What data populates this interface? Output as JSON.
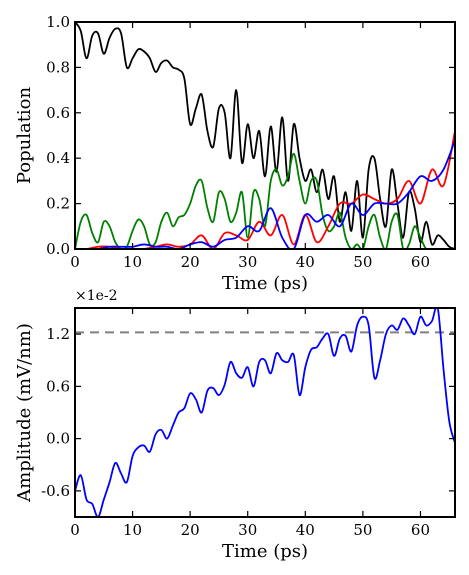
{
  "chart_data": [
    {
      "type": "line",
      "xlabel": "Time (ps)",
      "ylabel": "Population",
      "xlim": [
        0,
        66
      ],
      "ylim": [
        0.0,
        1.0
      ],
      "xticks": [
        "0",
        "10",
        "20",
        "30",
        "40",
        "50",
        "60"
      ],
      "yticks": [
        "0.0",
        "0.2",
        "0.4",
        "0.6",
        "0.8",
        "1.0"
      ],
      "grid": false,
      "series": [
        {
          "color": "#000000",
          "x": [
            0,
            1,
            2,
            3,
            4,
            5,
            6,
            7,
            8,
            9,
            10,
            11,
            12,
            13,
            14,
            15,
            16,
            17,
            18,
            19,
            20,
            21,
            22,
            23,
            24,
            25,
            26,
            27,
            28,
            29,
            30,
            31,
            32,
            33,
            34,
            35,
            36,
            37,
            38,
            39,
            40,
            41,
            42,
            43,
            44,
            45,
            46,
            47,
            48,
            49,
            50,
            51,
            52,
            53,
            54,
            55,
            56,
            57,
            58,
            59,
            60,
            61,
            62,
            63,
            64,
            65,
            66
          ],
          "y": [
            1.0,
            0.96,
            0.84,
            0.94,
            0.95,
            0.86,
            0.93,
            0.97,
            0.95,
            0.8,
            0.84,
            0.88,
            0.87,
            0.84,
            0.78,
            0.82,
            0.83,
            0.8,
            0.79,
            0.75,
            0.55,
            0.62,
            0.68,
            0.52,
            0.45,
            0.62,
            0.6,
            0.4,
            0.7,
            0.38,
            0.55,
            0.4,
            0.52,
            0.32,
            0.54,
            0.34,
            0.58,
            0.3,
            0.55,
            0.4,
            0.3,
            0.35,
            0.25,
            0.35,
            0.22,
            0.32,
            0.12,
            0.25,
            0.08,
            0.3,
            0.05,
            0.35,
            0.4,
            0.22,
            0.1,
            0.35,
            0.2,
            0.05,
            0.25,
            0.18,
            0.03,
            0.12,
            0.02,
            0.06,
            0.04,
            0.01,
            0.0
          ]
        },
        {
          "color": "#008000",
          "x": [
            0,
            1,
            2,
            3,
            4,
            5,
            6,
            7,
            8,
            9,
            10,
            11,
            12,
            13,
            14,
            15,
            16,
            17,
            18,
            19,
            20,
            21,
            22,
            23,
            24,
            25,
            26,
            27,
            28,
            29,
            30,
            31,
            32,
            33,
            34,
            35,
            36,
            37,
            38,
            39,
            40,
            41,
            42,
            43,
            44,
            45,
            46,
            47,
            48,
            49,
            50,
            51,
            52,
            53,
            54,
            55,
            56,
            57,
            58,
            59,
            60,
            61,
            62,
            63,
            64,
            65,
            66
          ],
          "y": [
            0.0,
            0.12,
            0.15,
            0.07,
            0.03,
            0.12,
            0.1,
            0.03,
            0.0,
            0.01,
            0.08,
            0.13,
            0.1,
            0.02,
            0.03,
            0.12,
            0.16,
            0.1,
            0.14,
            0.15,
            0.2,
            0.28,
            0.3,
            0.18,
            0.12,
            0.25,
            0.22,
            0.12,
            0.16,
            0.25,
            0.05,
            0.25,
            0.22,
            0.1,
            0.3,
            0.35,
            0.28,
            0.32,
            0.42,
            0.3,
            0.2,
            0.3,
            0.3,
            0.15,
            0.08,
            0.1,
            0.16,
            0.05,
            0.0,
            0.02,
            0.0,
            0.1,
            0.15,
            0.05,
            0.0,
            0.12,
            0.15,
            0.0,
            0.02,
            0.1,
            0.05,
            0.0,
            0.0,
            0.0,
            0.0,
            0.0,
            0.0
          ]
        },
        {
          "color": "#ff0000",
          "x": [
            0,
            2,
            4,
            6,
            8,
            10,
            12,
            14,
            16,
            18,
            20,
            22,
            24,
            26,
            28,
            30,
            32,
            34,
            36,
            38,
            40,
            42,
            44,
            46,
            48,
            50,
            52,
            54,
            56,
            58,
            60,
            62,
            64,
            66
          ],
          "y": [
            0.0,
            0.0,
            0.01,
            0.01,
            0.0,
            0.0,
            0.0,
            0.01,
            0.02,
            0.01,
            0.02,
            0.06,
            0.0,
            0.07,
            0.06,
            0.04,
            0.12,
            0.06,
            0.15,
            0.02,
            0.15,
            0.03,
            0.1,
            0.2,
            0.2,
            0.24,
            0.22,
            0.2,
            0.22,
            0.3,
            0.2,
            0.35,
            0.28,
            0.52
          ]
        },
        {
          "color": "#0000ff",
          "x": [
            0,
            2,
            4,
            6,
            8,
            10,
            12,
            14,
            16,
            18,
            20,
            22,
            24,
            26,
            28,
            30,
            32,
            34,
            36,
            38,
            40,
            42,
            44,
            46,
            48,
            50,
            52,
            54,
            56,
            58,
            60,
            62,
            64,
            66
          ],
          "y": [
            0.0,
            0.0,
            0.0,
            0.01,
            0.01,
            0.01,
            0.02,
            0.01,
            0.01,
            0.0,
            0.02,
            0.03,
            0.01,
            0.04,
            0.05,
            0.1,
            0.08,
            0.18,
            0.05,
            0.0,
            0.15,
            0.12,
            0.15,
            0.1,
            0.2,
            0.15,
            0.2,
            0.2,
            0.2,
            0.25,
            0.32,
            0.3,
            0.35,
            0.48
          ]
        }
      ]
    },
    {
      "type": "line",
      "xlabel": "Time (ps)",
      "ylabel": "Amplitude (mV/nm)",
      "offset_label": "×1e-2",
      "xlim": [
        0,
        66
      ],
      "ylim": [
        -0.9,
        1.5
      ],
      "xticks": [
        "0",
        "10",
        "20",
        "30",
        "40",
        "50",
        "60"
      ],
      "yticks": [
        "-0.6",
        "0.0",
        "0.6",
        "1.2"
      ],
      "grid": false,
      "reference_line": {
        "y": 1.22,
        "color": "#808080",
        "style": "dashed"
      },
      "series": [
        {
          "color": "#0000ff",
          "x": [
            0,
            1,
            2,
            3,
            4,
            5,
            6,
            7,
            8,
            9,
            10,
            11,
            12,
            13,
            14,
            15,
            16,
            17,
            18,
            19,
            20,
            21,
            22,
            23,
            24,
            25,
            26,
            27,
            28,
            29,
            30,
            31,
            32,
            33,
            34,
            35,
            36,
            37,
            38,
            39,
            40,
            41,
            42,
            43,
            44,
            45,
            46,
            47,
            48,
            49,
            50,
            51,
            52,
            53,
            54,
            55,
            56,
            57,
            58,
            59,
            60,
            61,
            62,
            63,
            64,
            65,
            66
          ],
          "y": [
            -0.6,
            -0.42,
            -0.7,
            -0.75,
            -0.9,
            -0.7,
            -0.5,
            -0.28,
            -0.4,
            -0.5,
            -0.2,
            -0.1,
            -0.08,
            -0.15,
            0.05,
            0.1,
            0.0,
            0.15,
            0.3,
            0.35,
            0.52,
            0.45,
            0.3,
            0.55,
            0.58,
            0.5,
            0.62,
            0.88,
            0.75,
            0.7,
            0.82,
            0.6,
            0.88,
            0.9,
            0.75,
            0.98,
            0.9,
            0.88,
            0.96,
            0.5,
            0.82,
            1.02,
            1.05,
            1.15,
            1.2,
            0.95,
            1.15,
            1.18,
            1.0,
            1.3,
            1.4,
            1.3,
            0.7,
            0.9,
            1.2,
            1.3,
            1.25,
            1.38,
            1.3,
            1.2,
            1.4,
            1.3,
            1.35,
            1.5,
            0.8,
            0.2,
            -0.05
          ]
        }
      ]
    }
  ]
}
